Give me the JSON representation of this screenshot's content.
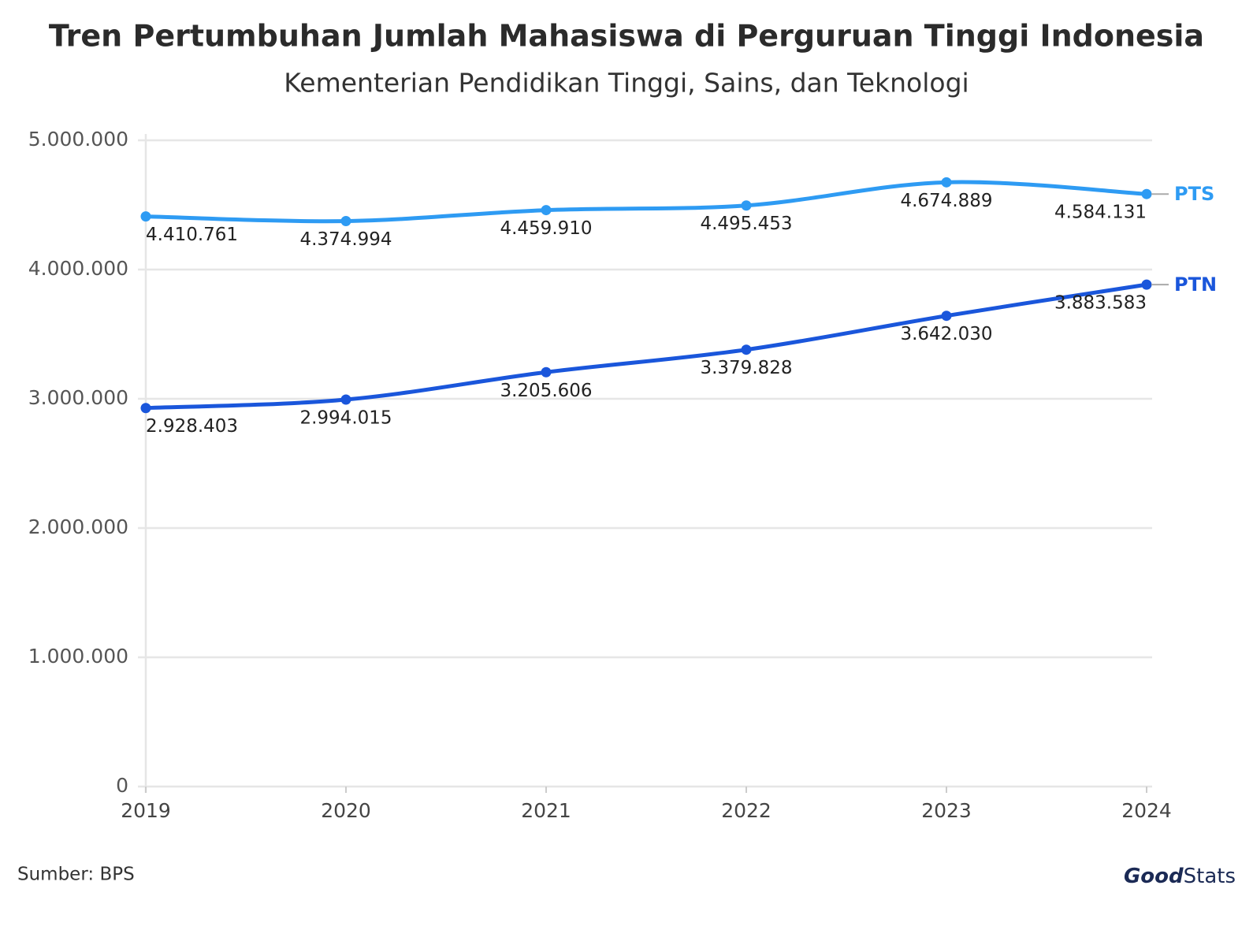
{
  "chart_data": {
    "type": "line",
    "title": "Tren Pertumbuhan Jumlah Mahasiswa di Perguruan Tinggi Indonesia",
    "subtitle": "Kementerian Pendidikan Tinggi, Sains, dan Teknologi",
    "x": [
      2019,
      2020,
      2021,
      2022,
      2023,
      2024
    ],
    "xlim": [
      2019,
      2024
    ],
    "xticks": [
      2019,
      2020,
      2021,
      2022,
      2023,
      2024
    ],
    "ylim": [
      0,
      5000000
    ],
    "yticks": [
      0,
      {
        "value": 1000000,
        "label": "1.000.000"
      },
      {
        "value": 2000000,
        "label": "2.000.000"
      },
      {
        "value": 3000000,
        "label": "3.000.000"
      },
      {
        "value": 4000000,
        "label": "4.000.000"
      },
      {
        "value": 5000000,
        "label": "5.000.000"
      }
    ],
    "grid": true,
    "series": [
      {
        "name": "PTS",
        "color": "#2e9bf3",
        "values": [
          4410761,
          4374994,
          4459910,
          4495453,
          4674889,
          4584131
        ],
        "value_labels": [
          "4.410.761",
          "4.374.994",
          "4.459.910",
          "4.495.453",
          "4.674.889",
          "4.584.131"
        ]
      },
      {
        "name": "PTN",
        "color": "#1a56db",
        "values": [
          2928403,
          2994015,
          3205606,
          3379828,
          3642030,
          3883583
        ],
        "value_labels": [
          "2.928.403",
          "2.994.015",
          "3.205.606",
          "3.379.828",
          "3.642.030",
          "3.883.583"
        ]
      }
    ],
    "source": "Sumber: BPS",
    "brand": [
      "Good",
      "Stats"
    ]
  }
}
